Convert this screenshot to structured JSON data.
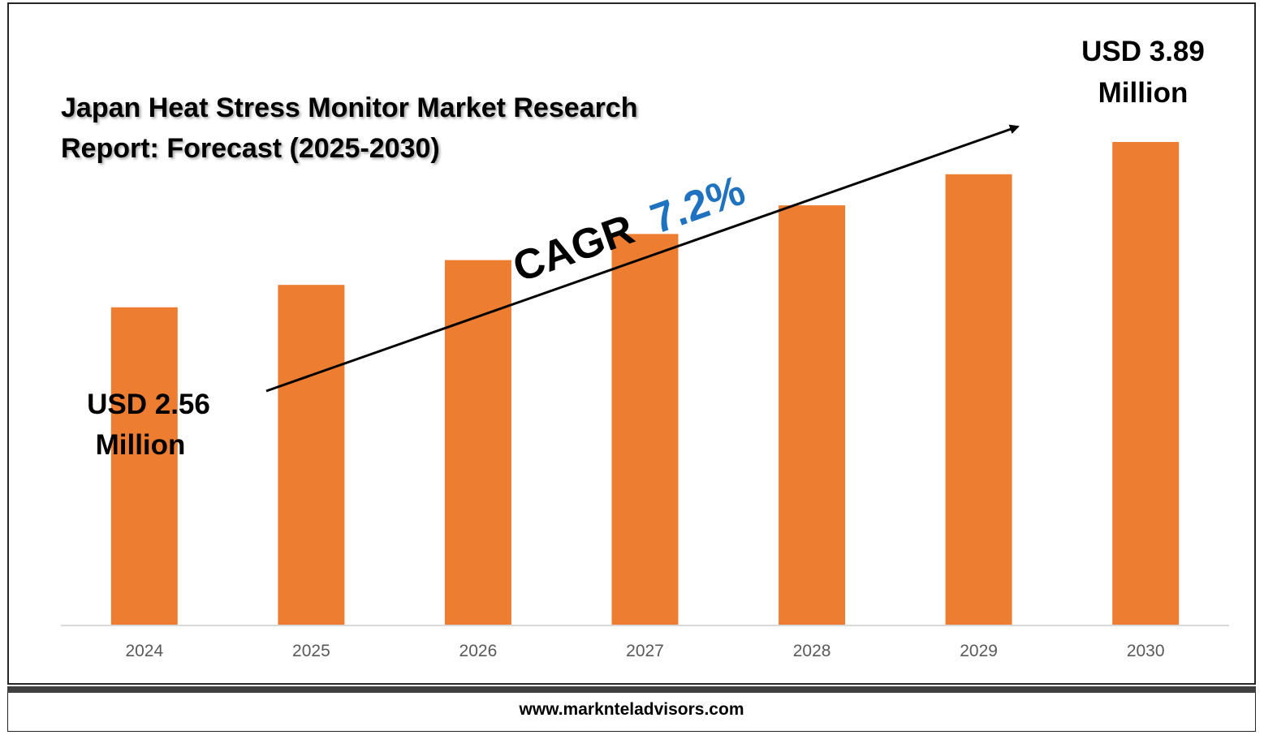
{
  "title": "Japan Heat Stress Monitor Market Research Report: Forecast (2025-2030)",
  "footer": "www.marknteladvisors.com",
  "cagr": {
    "label": "CAGR",
    "value": "7.2%"
  },
  "callouts": {
    "start": {
      "line1": "USD 2.56",
      "line2": "Million"
    },
    "end": {
      "line1": "USD 3.89",
      "line2": "Million"
    }
  },
  "colors": {
    "bar": "#ED7D31",
    "cagr_value": "#1F72C0",
    "axis": "#D9D9D9"
  },
  "chart_data": {
    "type": "bar",
    "categories": [
      "2024",
      "2025",
      "2026",
      "2027",
      "2028",
      "2029",
      "2030"
    ],
    "values": [
      2.56,
      2.74,
      2.94,
      3.15,
      3.38,
      3.63,
      3.89
    ],
    "unit": "USD Million",
    "title": "Japan Heat Stress Monitor Market Research Report: Forecast (2025-2030)",
    "xlabel": "",
    "ylabel": "",
    "ylim": [
      0,
      3.89
    ],
    "grid": false,
    "legend": "none"
  }
}
